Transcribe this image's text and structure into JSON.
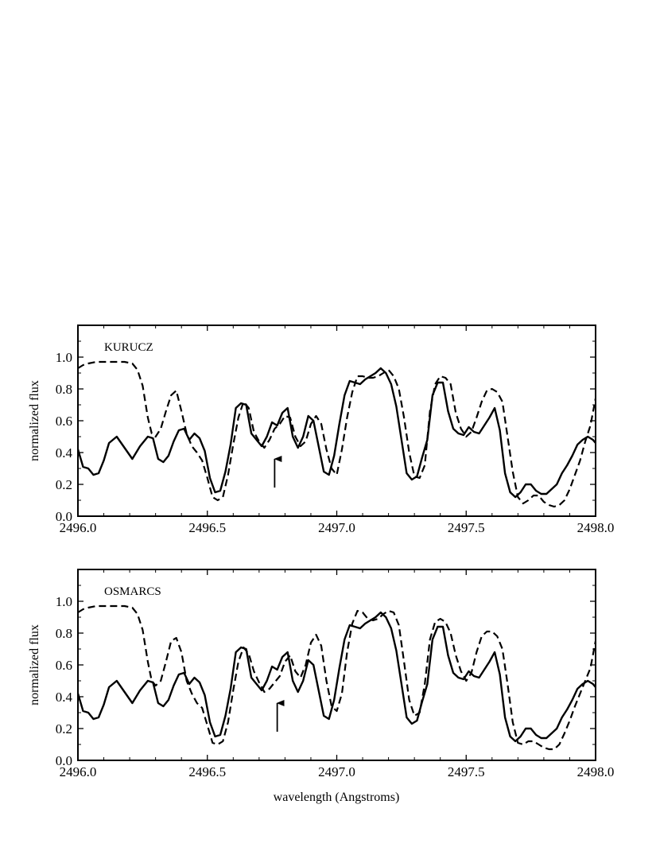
{
  "figure": {
    "xlabel": "wavelength (Angstroms)"
  },
  "chart_data": [
    {
      "type": "line",
      "panel_label": "KURUCZ",
      "xlabel": "",
      "ylabel": "normalized flux",
      "xlim": [
        2496.0,
        2498.0
      ],
      "ylim": [
        0.0,
        1.2
      ],
      "x_ticks": [
        2496.0,
        2496.5,
        2497.0,
        2497.5,
        2498.0
      ],
      "x_tick_labels": [
        "2496.0",
        "2496.5",
        "2497.0",
        "2497.5",
        "2498.0"
      ],
      "y_ticks": [
        0.0,
        0.2,
        0.4,
        0.6,
        0.8,
        1.0
      ],
      "y_tick_labels": [
        "0.0",
        "0.2",
        "0.4",
        "0.6",
        "0.8",
        "1.0"
      ],
      "arrow_x": 2496.76,
      "series": [
        {
          "style": "solid",
          "x": [
            2496.0,
            2496.02,
            2496.04,
            2496.06,
            2496.08,
            2496.1,
            2496.12,
            2496.15,
            2496.18,
            2496.21,
            2496.24,
            2496.27,
            2496.29,
            2496.31,
            2496.33,
            2496.35,
            2496.37,
            2496.39,
            2496.41,
            2496.43,
            2496.45,
            2496.47,
            2496.49,
            2496.51,
            2496.53,
            2496.55,
            2496.57,
            2496.59,
            2496.61,
            2496.63,
            2496.65,
            2496.67,
            2496.69,
            2496.71,
            2496.73,
            2496.75,
            2496.77,
            2496.79,
            2496.81,
            2496.83,
            2496.85,
            2496.87,
            2496.89,
            2496.91,
            2496.93,
            2496.95,
            2496.97,
            2496.99,
            2497.01,
            2497.03,
            2497.05,
            2497.07,
            2497.09,
            2497.11,
            2497.13,
            2497.15,
            2497.17,
            2497.19,
            2497.21,
            2497.23,
            2497.25,
            2497.27,
            2497.29,
            2497.31,
            2497.33,
            2497.35,
            2497.37,
            2497.39,
            2497.41,
            2497.43,
            2497.45,
            2497.47,
            2497.49,
            2497.51,
            2497.53,
            2497.55,
            2497.57,
            2497.59,
            2497.61,
            2497.63,
            2497.65,
            2497.67,
            2497.69,
            2497.71,
            2497.73,
            2497.75,
            2497.77,
            2497.79,
            2497.81,
            2497.83,
            2497.85,
            2497.87,
            2497.89,
            2497.91,
            2497.93,
            2497.95,
            2497.97,
            2497.99,
            2498.0
          ],
          "y": [
            0.42,
            0.31,
            0.3,
            0.26,
            0.27,
            0.35,
            0.46,
            0.5,
            0.43,
            0.36,
            0.44,
            0.5,
            0.49,
            0.36,
            0.34,
            0.38,
            0.47,
            0.54,
            0.55,
            0.48,
            0.52,
            0.49,
            0.41,
            0.24,
            0.15,
            0.16,
            0.28,
            0.45,
            0.68,
            0.71,
            0.7,
            0.52,
            0.48,
            0.44,
            0.5,
            0.59,
            0.57,
            0.65,
            0.68,
            0.5,
            0.43,
            0.5,
            0.63,
            0.6,
            0.44,
            0.28,
            0.26,
            0.38,
            0.58,
            0.76,
            0.85,
            0.84,
            0.83,
            0.86,
            0.88,
            0.9,
            0.93,
            0.9,
            0.83,
            0.69,
            0.48,
            0.27,
            0.23,
            0.25,
            0.37,
            0.48,
            0.76,
            0.84,
            0.84,
            0.66,
            0.55,
            0.52,
            0.51,
            0.56,
            0.53,
            0.52,
            0.57,
            0.62,
            0.68,
            0.54,
            0.27,
            0.15,
            0.12,
            0.15,
            0.2,
            0.2,
            0.16,
            0.14,
            0.14,
            0.17,
            0.2,
            0.27,
            0.32,
            0.38,
            0.45,
            0.48,
            0.5,
            0.48,
            0.46
          ]
        },
        {
          "style": "dashed",
          "x": [
            2496.0,
            2496.02,
            2496.04,
            2496.07,
            2496.1,
            2496.14,
            2496.18,
            2496.21,
            2496.23,
            2496.25,
            2496.27,
            2496.285,
            2496.3,
            2496.32,
            2496.34,
            2496.36,
            2496.38,
            2496.4,
            2496.42,
            2496.44,
            2496.46,
            2496.48,
            2496.5,
            2496.52,
            2496.54,
            2496.56,
            2496.58,
            2496.6,
            2496.62,
            2496.64,
            2496.66,
            2496.68,
            2496.7,
            2496.72,
            2496.74,
            2496.76,
            2496.78,
            2496.8,
            2496.82,
            2496.84,
            2496.86,
            2496.88,
            2496.9,
            2496.92,
            2496.94,
            2496.96,
            2496.98,
            2497.0,
            2497.02,
            2497.04,
            2497.06,
            2497.08,
            2497.1,
            2497.12,
            2497.14,
            2497.16,
            2497.18,
            2497.2,
            2497.22,
            2497.24,
            2497.26,
            2497.28,
            2497.3,
            2497.32,
            2497.34,
            2497.36,
            2497.38,
            2497.4,
            2497.42,
            2497.44,
            2497.46,
            2497.48,
            2497.5,
            2497.52,
            2497.54,
            2497.56,
            2497.58,
            2497.6,
            2497.62,
            2497.64,
            2497.66,
            2497.68,
            2497.7,
            2497.72,
            2497.74,
            2497.76,
            2497.78,
            2497.8,
            2497.82,
            2497.84,
            2497.86,
            2497.88,
            2497.9,
            2497.92,
            2497.94,
            2497.96,
            2497.98,
            2498.0
          ],
          "y": [
            0.93,
            0.95,
            0.96,
            0.97,
            0.97,
            0.97,
            0.97,
            0.96,
            0.92,
            0.82,
            0.62,
            0.52,
            0.5,
            0.55,
            0.66,
            0.76,
            0.79,
            0.66,
            0.52,
            0.44,
            0.4,
            0.35,
            0.24,
            0.12,
            0.1,
            0.12,
            0.26,
            0.45,
            0.62,
            0.72,
            0.68,
            0.53,
            0.47,
            0.43,
            0.48,
            0.55,
            0.58,
            0.63,
            0.62,
            0.5,
            0.44,
            0.47,
            0.58,
            0.63,
            0.58,
            0.42,
            0.3,
            0.26,
            0.42,
            0.62,
            0.78,
            0.88,
            0.88,
            0.87,
            0.87,
            0.88,
            0.9,
            0.92,
            0.88,
            0.8,
            0.62,
            0.4,
            0.25,
            0.24,
            0.32,
            0.66,
            0.83,
            0.88,
            0.87,
            0.83,
            0.65,
            0.55,
            0.5,
            0.53,
            0.62,
            0.72,
            0.79,
            0.8,
            0.78,
            0.72,
            0.5,
            0.28,
            0.12,
            0.08,
            0.1,
            0.13,
            0.13,
            0.09,
            0.07,
            0.06,
            0.07,
            0.1,
            0.17,
            0.26,
            0.35,
            0.47,
            0.57,
            0.74
          ]
        }
      ]
    },
    {
      "type": "line",
      "panel_label": "OSMARCS",
      "xlabel": "wavelength (Angstroms)",
      "ylabel": "normalized flux",
      "xlim": [
        2496.0,
        2498.0
      ],
      "ylim": [
        0.0,
        1.2
      ],
      "x_ticks": [
        2496.0,
        2496.5,
        2497.0,
        2497.5,
        2498.0
      ],
      "x_tick_labels": [
        "2496.0",
        "2496.5",
        "2497.0",
        "2497.5",
        "2498.0"
      ],
      "y_ticks": [
        0.0,
        0.2,
        0.4,
        0.6,
        0.8,
        1.0
      ],
      "y_tick_labels": [
        "0.0",
        "0.2",
        "0.4",
        "0.6",
        "0.8",
        "1.0"
      ],
      "arrow_x": 2496.77,
      "series": [
        {
          "style": "solid",
          "x": [
            2496.0,
            2496.02,
            2496.04,
            2496.06,
            2496.08,
            2496.1,
            2496.12,
            2496.15,
            2496.18,
            2496.21,
            2496.24,
            2496.27,
            2496.29,
            2496.31,
            2496.33,
            2496.35,
            2496.37,
            2496.39,
            2496.41,
            2496.43,
            2496.45,
            2496.47,
            2496.49,
            2496.51,
            2496.53,
            2496.55,
            2496.57,
            2496.59,
            2496.61,
            2496.63,
            2496.65,
            2496.67,
            2496.69,
            2496.71,
            2496.73,
            2496.75,
            2496.77,
            2496.79,
            2496.81,
            2496.83,
            2496.85,
            2496.87,
            2496.89,
            2496.91,
            2496.93,
            2496.95,
            2496.97,
            2496.99,
            2497.01,
            2497.03,
            2497.05,
            2497.07,
            2497.09,
            2497.11,
            2497.13,
            2497.15,
            2497.17,
            2497.19,
            2497.21,
            2497.23,
            2497.25,
            2497.27,
            2497.29,
            2497.31,
            2497.33,
            2497.35,
            2497.37,
            2497.39,
            2497.41,
            2497.43,
            2497.45,
            2497.47,
            2497.49,
            2497.51,
            2497.53,
            2497.55,
            2497.57,
            2497.59,
            2497.61,
            2497.63,
            2497.65,
            2497.67,
            2497.69,
            2497.71,
            2497.73,
            2497.75,
            2497.77,
            2497.79,
            2497.81,
            2497.83,
            2497.85,
            2497.87,
            2497.89,
            2497.91,
            2497.93,
            2497.95,
            2497.97,
            2497.99,
            2498.0
          ],
          "y": [
            0.42,
            0.31,
            0.3,
            0.26,
            0.27,
            0.35,
            0.46,
            0.5,
            0.43,
            0.36,
            0.44,
            0.5,
            0.49,
            0.36,
            0.34,
            0.38,
            0.47,
            0.54,
            0.55,
            0.48,
            0.52,
            0.49,
            0.41,
            0.24,
            0.15,
            0.16,
            0.28,
            0.45,
            0.68,
            0.71,
            0.7,
            0.52,
            0.48,
            0.44,
            0.5,
            0.59,
            0.57,
            0.65,
            0.68,
            0.5,
            0.43,
            0.5,
            0.63,
            0.6,
            0.44,
            0.28,
            0.26,
            0.38,
            0.58,
            0.76,
            0.85,
            0.84,
            0.83,
            0.86,
            0.88,
            0.9,
            0.93,
            0.9,
            0.83,
            0.69,
            0.48,
            0.27,
            0.23,
            0.25,
            0.37,
            0.48,
            0.76,
            0.84,
            0.84,
            0.66,
            0.55,
            0.52,
            0.51,
            0.56,
            0.53,
            0.52,
            0.57,
            0.62,
            0.68,
            0.54,
            0.27,
            0.15,
            0.12,
            0.15,
            0.2,
            0.2,
            0.16,
            0.14,
            0.14,
            0.17,
            0.2,
            0.27,
            0.32,
            0.38,
            0.45,
            0.48,
            0.5,
            0.48,
            0.46
          ]
        },
        {
          "style": "dashed",
          "x": [
            2496.0,
            2496.02,
            2496.04,
            2496.07,
            2496.1,
            2496.14,
            2496.18,
            2496.21,
            2496.23,
            2496.25,
            2496.27,
            2496.285,
            2496.3,
            2496.32,
            2496.34,
            2496.36,
            2496.38,
            2496.4,
            2496.42,
            2496.44,
            2496.46,
            2496.48,
            2496.5,
            2496.52,
            2496.54,
            2496.56,
            2496.58,
            2496.6,
            2496.62,
            2496.64,
            2496.66,
            2496.68,
            2496.7,
            2496.72,
            2496.74,
            2496.76,
            2496.78,
            2496.8,
            2496.82,
            2496.84,
            2496.86,
            2496.88,
            2496.9,
            2496.92,
            2496.94,
            2496.96,
            2496.98,
            2497.0,
            2497.02,
            2497.04,
            2497.06,
            2497.08,
            2497.1,
            2497.12,
            2497.14,
            2497.16,
            2497.18,
            2497.2,
            2497.22,
            2497.24,
            2497.26,
            2497.28,
            2497.3,
            2497.32,
            2497.34,
            2497.36,
            2497.38,
            2497.4,
            2497.42,
            2497.44,
            2497.46,
            2497.48,
            2497.5,
            2497.52,
            2497.54,
            2497.56,
            2497.58,
            2497.6,
            2497.62,
            2497.64,
            2497.66,
            2497.68,
            2497.7,
            2497.72,
            2497.74,
            2497.76,
            2497.78,
            2497.8,
            2497.82,
            2497.84,
            2497.86,
            2497.88,
            2497.9,
            2497.92,
            2497.94,
            2497.96,
            2497.98,
            2498.0
          ],
          "y": [
            0.93,
            0.95,
            0.96,
            0.97,
            0.97,
            0.97,
            0.97,
            0.96,
            0.92,
            0.82,
            0.62,
            0.5,
            0.47,
            0.5,
            0.62,
            0.75,
            0.77,
            0.68,
            0.5,
            0.42,
            0.36,
            0.33,
            0.22,
            0.11,
            0.1,
            0.12,
            0.24,
            0.44,
            0.62,
            0.71,
            0.67,
            0.56,
            0.49,
            0.43,
            0.45,
            0.49,
            0.53,
            0.62,
            0.66,
            0.56,
            0.52,
            0.6,
            0.74,
            0.79,
            0.72,
            0.5,
            0.34,
            0.31,
            0.42,
            0.68,
            0.86,
            0.94,
            0.93,
            0.89,
            0.88,
            0.89,
            0.92,
            0.94,
            0.93,
            0.85,
            0.62,
            0.38,
            0.28,
            0.3,
            0.48,
            0.76,
            0.87,
            0.89,
            0.87,
            0.8,
            0.66,
            0.56,
            0.5,
            0.55,
            0.68,
            0.78,
            0.81,
            0.81,
            0.78,
            0.7,
            0.48,
            0.24,
            0.11,
            0.1,
            0.12,
            0.12,
            0.1,
            0.08,
            0.07,
            0.07,
            0.1,
            0.17,
            0.25,
            0.34,
            0.42,
            0.5,
            0.58,
            0.75
          ]
        }
      ]
    }
  ]
}
